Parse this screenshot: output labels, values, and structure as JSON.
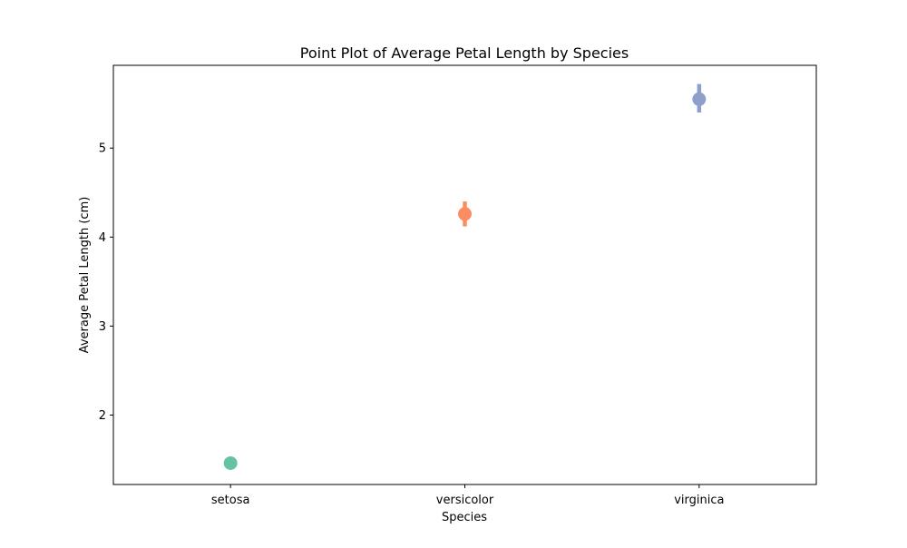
{
  "chart_data": {
    "type": "point",
    "title": "Point Plot of Average Petal Length by Species",
    "xlabel": "Species",
    "ylabel": "Average Petal Length (cm)",
    "categories": [
      "setosa",
      "versicolor",
      "virginica"
    ],
    "values": [
      1.46,
      4.26,
      5.55
    ],
    "error_bars": [
      [
        1.44,
        1.49
      ],
      [
        4.12,
        4.4
      ],
      [
        5.4,
        5.72
      ]
    ],
    "colors": [
      "#66c2a5",
      "#fc8d62",
      "#8da0cb"
    ],
    "ylim": [
      1.22,
      5.93
    ],
    "yticks": [
      2,
      3,
      4,
      5
    ],
    "grid": false,
    "legend": "none"
  }
}
